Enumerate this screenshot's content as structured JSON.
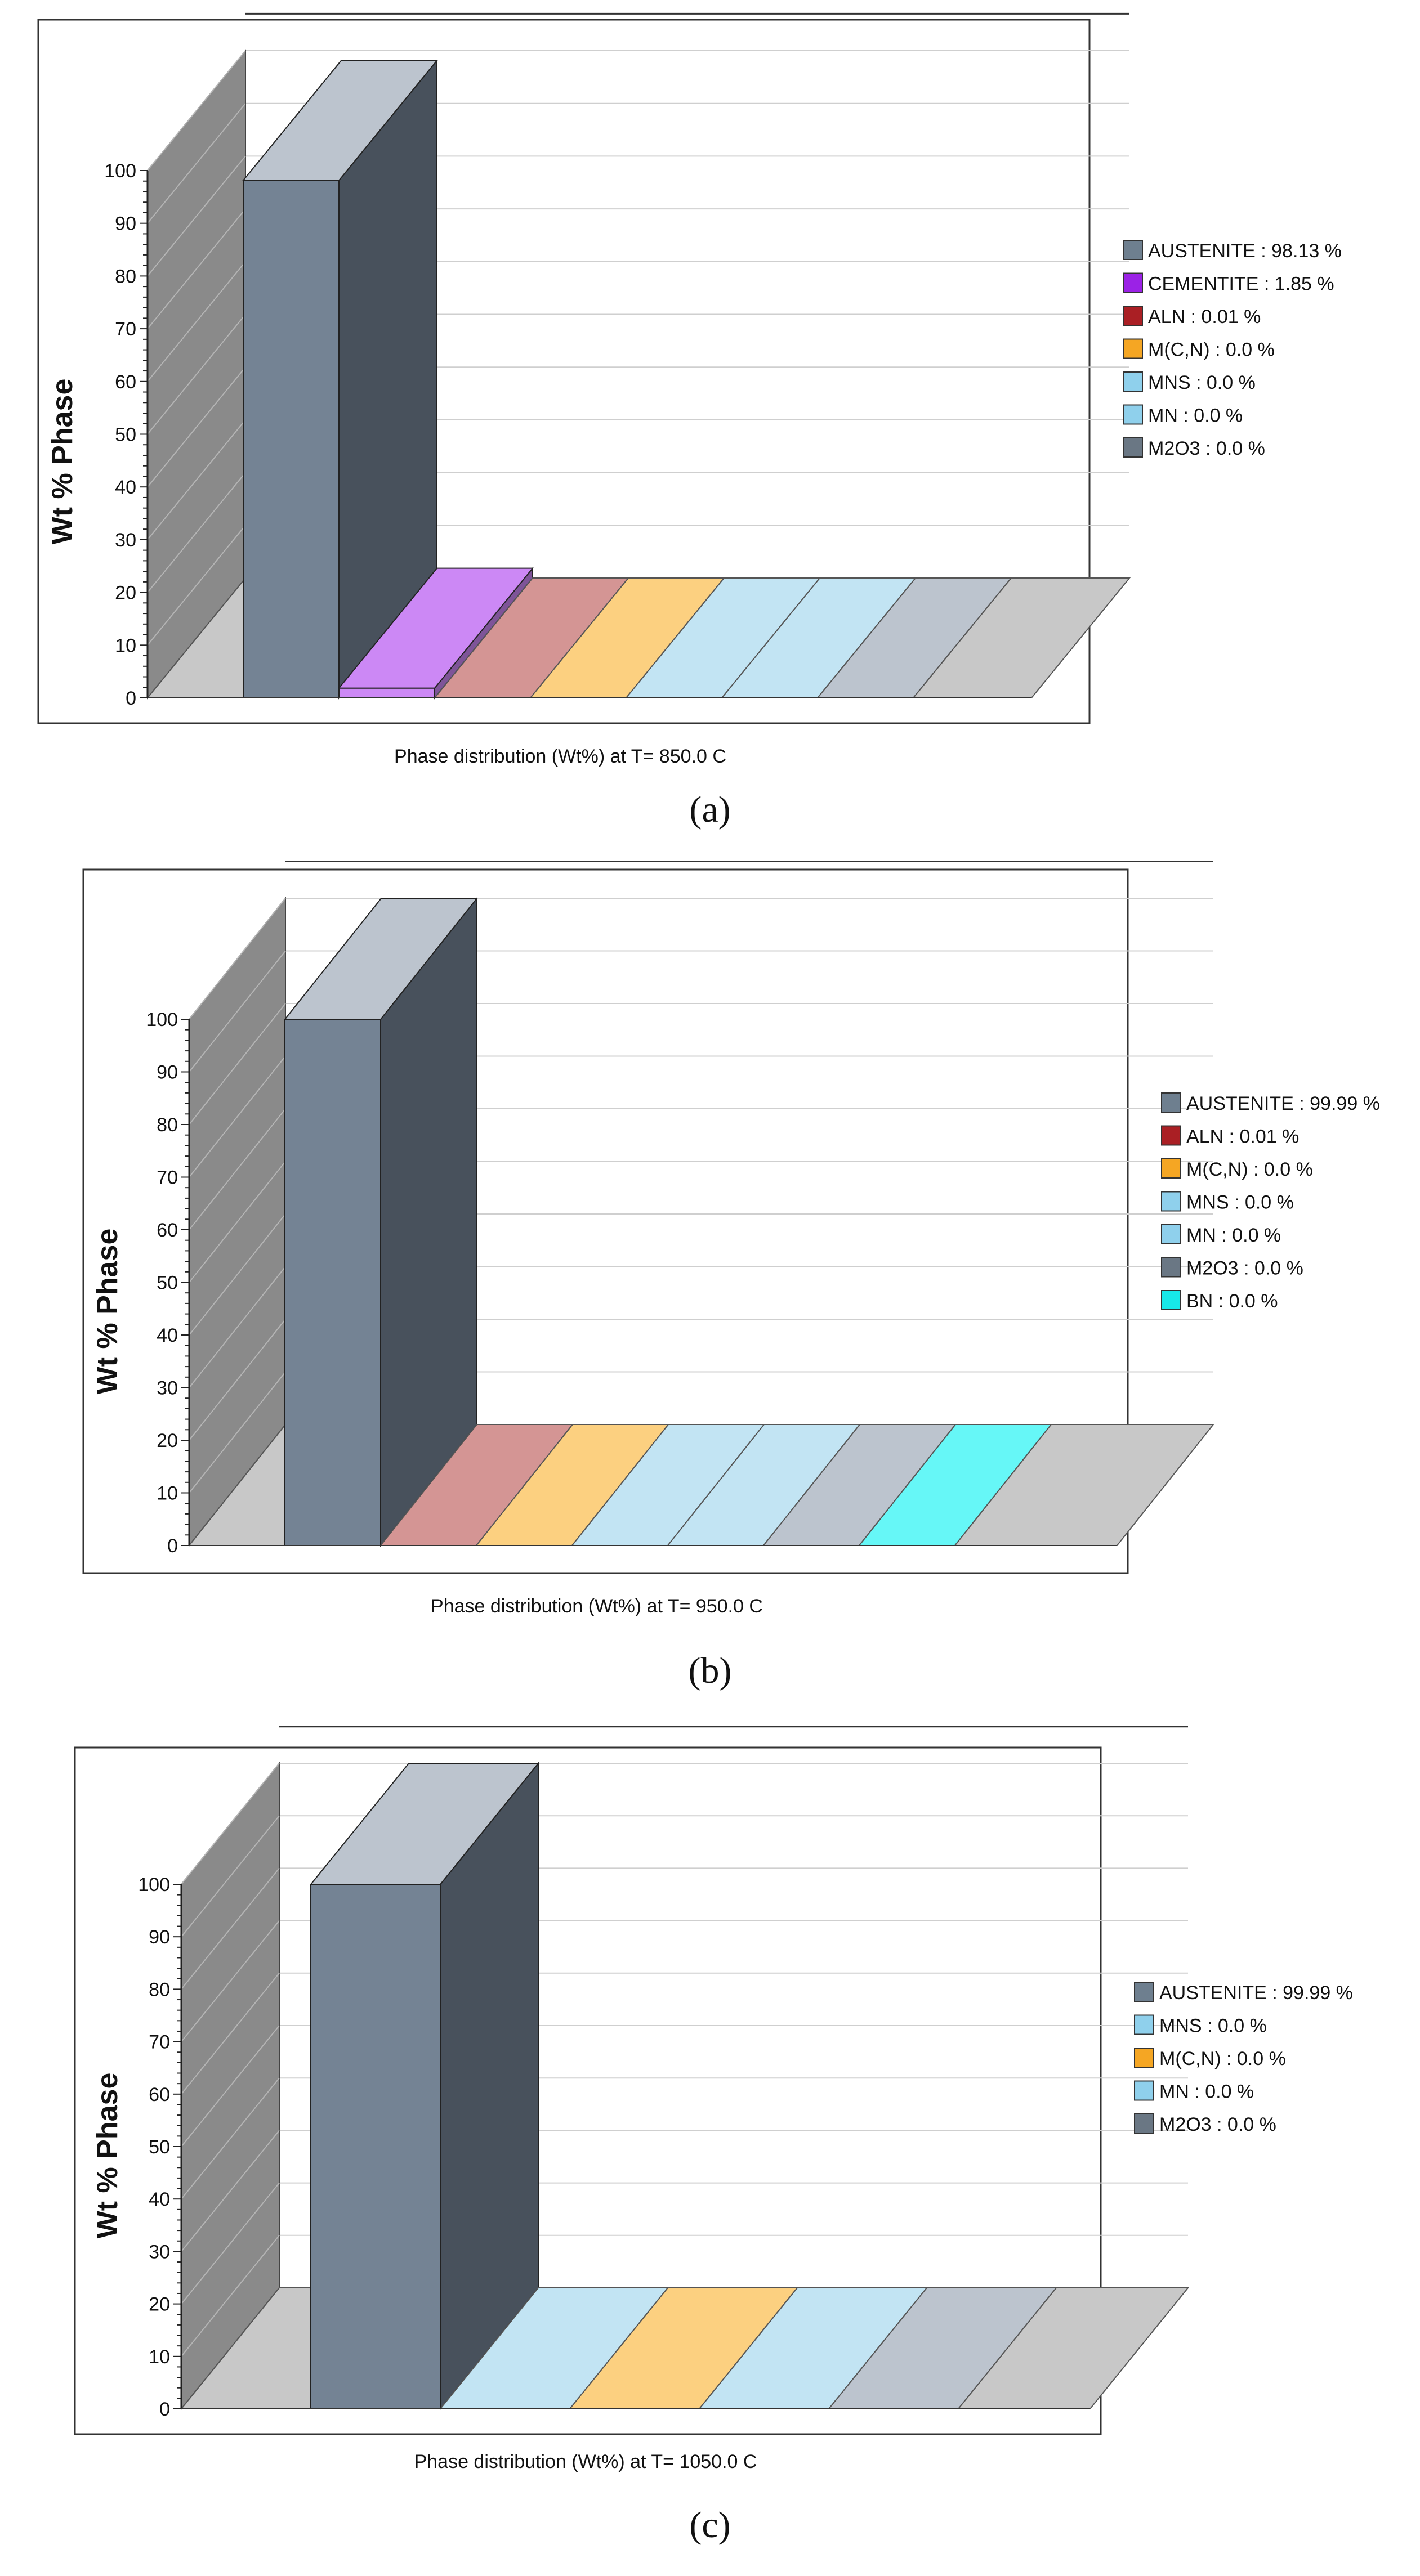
{
  "figure": {
    "panels": [
      {
        "label": "(a)",
        "label_letter": "a",
        "caption": "Phase distribution (Wt%) at T= 850.0 C",
        "chart_data": {
          "type": "bar",
          "title": "Phase distribution (Wt%) at T= 850.0 C",
          "ylabel": "Wt % Phase",
          "xlabel": "",
          "ylim": [
            0,
            100
          ],
          "yticks": [
            0,
            10,
            20,
            30,
            40,
            50,
            60,
            70,
            80,
            90,
            100
          ],
          "legend_position": "right",
          "categories": [
            "AUSTENITE",
            "CEMENTITE",
            "ALN",
            "M(C,N)",
            "MNS",
            "MN",
            "M2O3"
          ],
          "values": [
            98.13,
            1.85,
            0.01,
            0.0,
            0.0,
            0.0,
            0.0
          ],
          "legend": [
            "AUSTENITE : 98.13 %",
            "CEMENTITE : 1.85 %",
            "ALN : 0.01 %",
            "M(C,N) : 0.0 %",
            "MNS : 0.0 %",
            "MN : 0.0 %",
            "M2O3 : 0.0 %"
          ],
          "colors": [
            "#748394",
            "#cc88f5",
            "#d49594",
            "#fcd080",
            "#c2e4f3",
            "#c2e4f3",
            "#bcc4ce"
          ],
          "legend_colors": [
            "#6e7f8f",
            "#9b22e6",
            "#aa1f24",
            "#f5a623",
            "#8fd0ec",
            "#8fd0ec",
            "#6a7784"
          ]
        }
      },
      {
        "label": "(b)",
        "label_letter": "b",
        "caption": "Phase distribution (Wt%) at T= 950.0 C",
        "chart_data": {
          "type": "bar",
          "title": "Phase distribution (Wt%) at T= 950.0 C",
          "ylabel": "Wt % Phase",
          "xlabel": "",
          "ylim": [
            0,
            100
          ],
          "yticks": [
            0,
            10,
            20,
            30,
            40,
            50,
            60,
            70,
            80,
            90,
            100
          ],
          "legend_position": "right",
          "categories": [
            "AUSTENITE",
            "ALN",
            "M(C,N)",
            "MNS",
            "MN",
            "M2O3",
            "BN"
          ],
          "values": [
            99.99,
            0.01,
            0.0,
            0.0,
            0.0,
            0.0,
            0.0
          ],
          "legend": [
            "AUSTENITE : 99.99 %",
            "ALN : 0.01 %",
            "M(C,N) : 0.0 %",
            "MNS : 0.0 %",
            "MN : 0.0 %",
            "M2O3 : 0.0 %",
            "BN : 0.0 %"
          ],
          "colors": [
            "#748394",
            "#d49594",
            "#fcd080",
            "#c2e4f3",
            "#c2e4f3",
            "#bcc4ce",
            "#66f7f7"
          ],
          "legend_colors": [
            "#6e7f8f",
            "#aa1f24",
            "#f5a623",
            "#8fd0ec",
            "#8fd0ec",
            "#6a7784",
            "#17e8e8"
          ]
        }
      },
      {
        "label": "(c)",
        "label_letter": "c",
        "caption": "Phase distribution (Wt%) at T= 1050.0 C",
        "chart_data": {
          "type": "bar",
          "title": "Phase distribution (Wt%) at T= 1050.0 C",
          "ylabel": "Wt % Phase",
          "xlabel": "",
          "ylim": [
            0,
            100
          ],
          "yticks": [
            0,
            10,
            20,
            30,
            40,
            50,
            60,
            70,
            80,
            90,
            100
          ],
          "legend_position": "right",
          "categories": [
            "AUSTENITE",
            "MNS",
            "M(C,N)",
            "MN",
            "M2O3"
          ],
          "values": [
            99.99,
            0.0,
            0.0,
            0.0,
            0.0
          ],
          "legend": [
            "AUSTENITE : 99.99 %",
            "MNS : 0.0 %",
            "M(C,N) : 0.0 %",
            "MN : 0.0 %",
            "M2O3 : 0.0 %"
          ],
          "colors": [
            "#748394",
            "#c2e4f3",
            "#fcd080",
            "#c2e4f3",
            "#bcc4ce"
          ],
          "legend_colors": [
            "#6e7f8f",
            "#8fd0ec",
            "#f5a623",
            "#8fd0ec",
            "#6a7784"
          ]
        }
      }
    ]
  }
}
